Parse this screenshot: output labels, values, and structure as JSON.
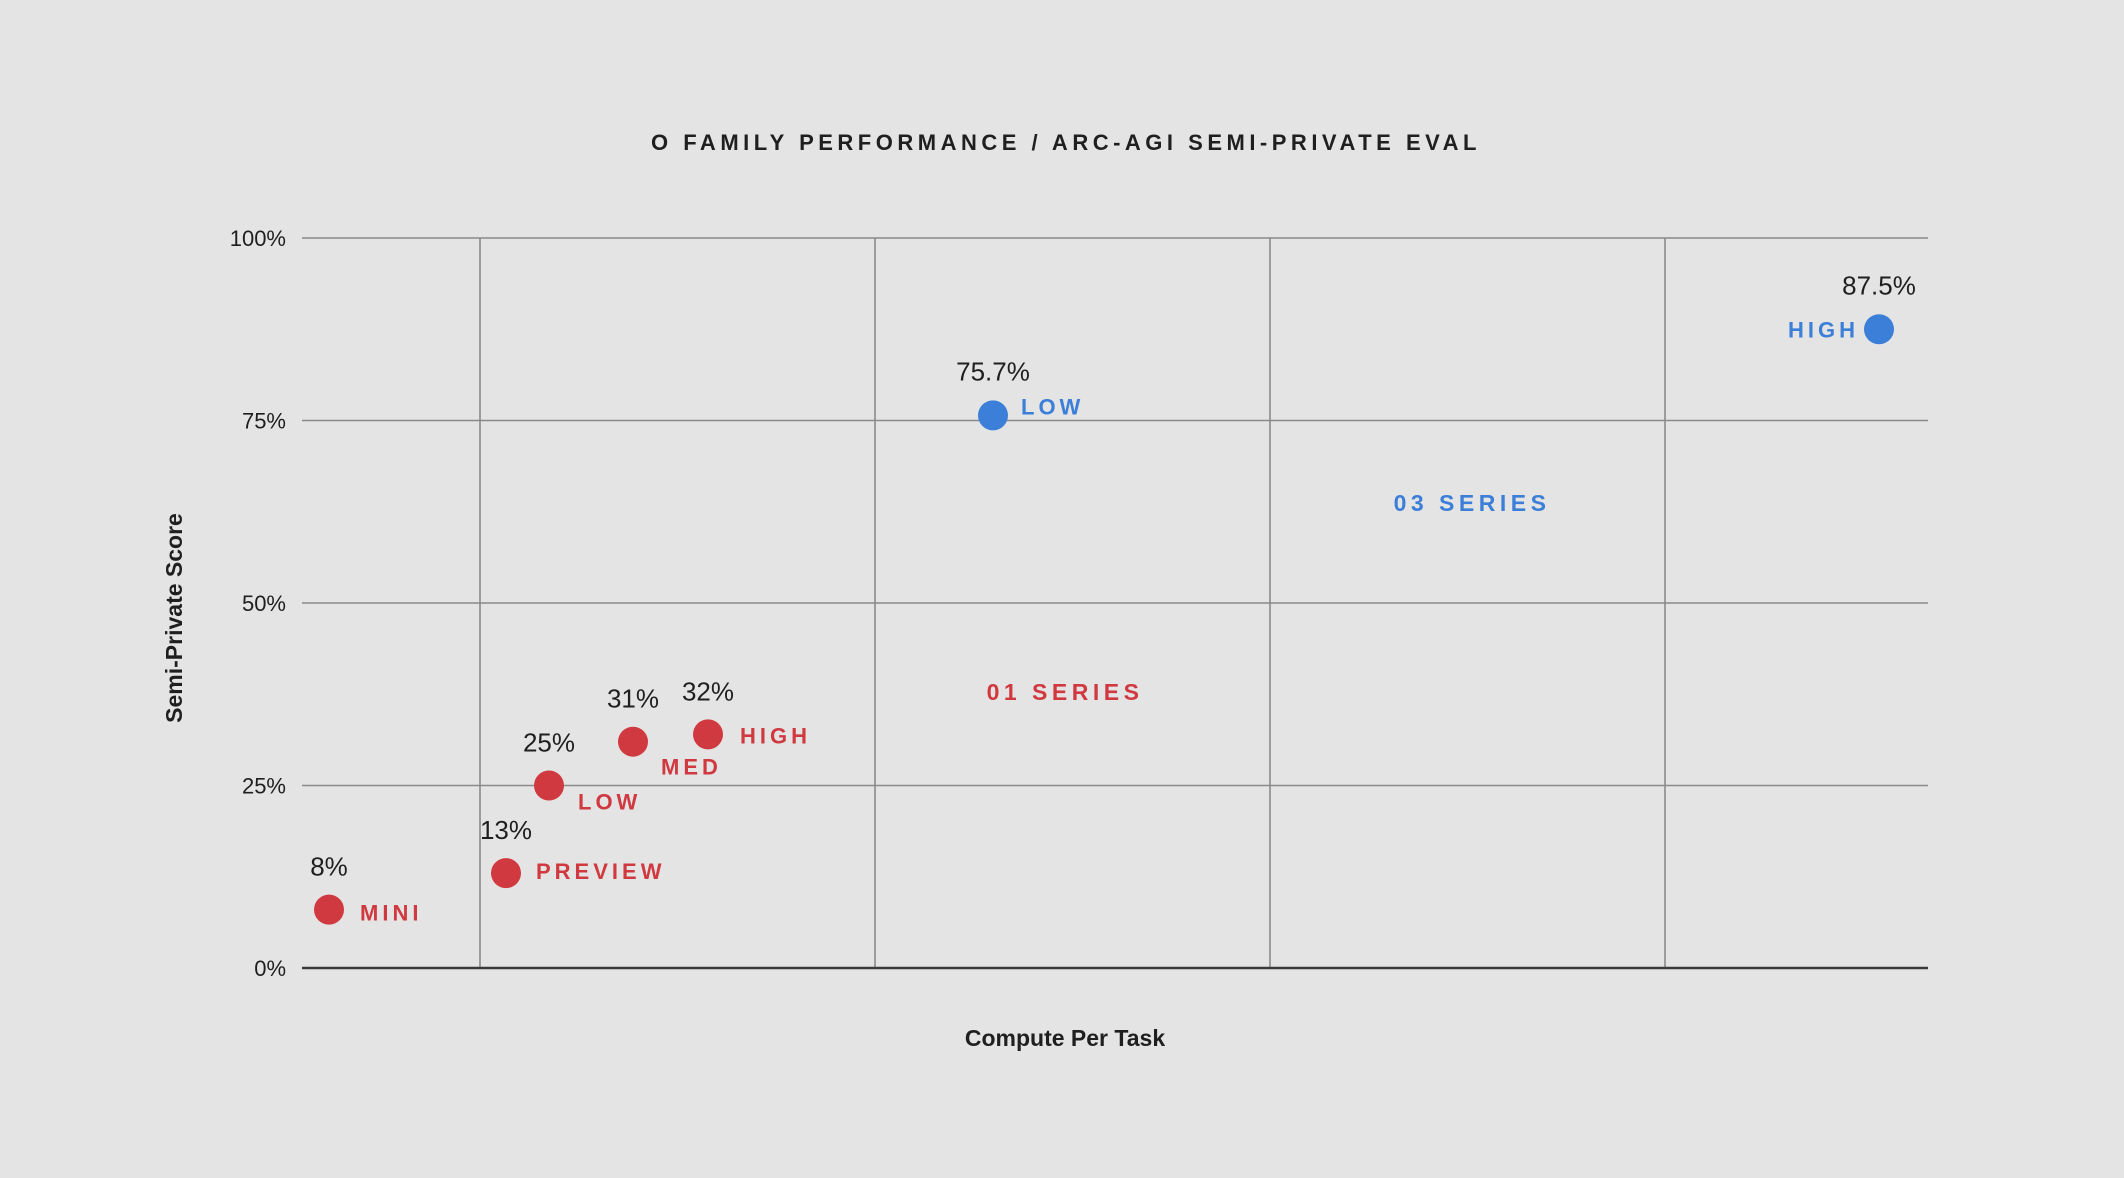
{
  "chart_data": {
    "type": "scatter",
    "title": "O FAMILY PERFORMANCE / ARC-AGI SEMI-PRIVATE EVAL",
    "xlabel": "Compute Per Task",
    "ylabel": "Semi-Private Score",
    "ylim": [
      0,
      100
    ],
    "y_ticks": [
      {
        "value": 0,
        "label": "0%"
      },
      {
        "value": 25,
        "label": "25%"
      },
      {
        "value": 50,
        "label": "50%"
      },
      {
        "value": 75,
        "label": "75%"
      },
      {
        "value": 100,
        "label": "100%"
      }
    ],
    "x_ticks": [],
    "grid": true,
    "colors": {
      "o1": "#d0393f",
      "o3": "#3b7fd9",
      "grid": "#8a8a8a",
      "axis": "#3a3a3a",
      "text": "#1f1f1f"
    },
    "series": [
      {
        "name": "01 SERIES",
        "color": "#d0393f",
        "points": [
          {
            "label": "MINI",
            "value_label": "8%",
            "y": 8
          },
          {
            "label": "PREVIEW",
            "value_label": "13%",
            "y": 13
          },
          {
            "label": "LOW",
            "value_label": "25%",
            "y": 25
          },
          {
            "label": "MED",
            "value_label": "31%",
            "y": 31
          },
          {
            "label": "HIGH",
            "value_label": "32%",
            "y": 32
          }
        ]
      },
      {
        "name": "03 SERIES",
        "color": "#3b7fd9",
        "points": [
          {
            "label": "LOW",
            "value_label": "75.7%",
            "y": 75.7
          },
          {
            "label": "HIGH",
            "value_label": "87.5%",
            "y": 87.5
          }
        ]
      }
    ]
  }
}
